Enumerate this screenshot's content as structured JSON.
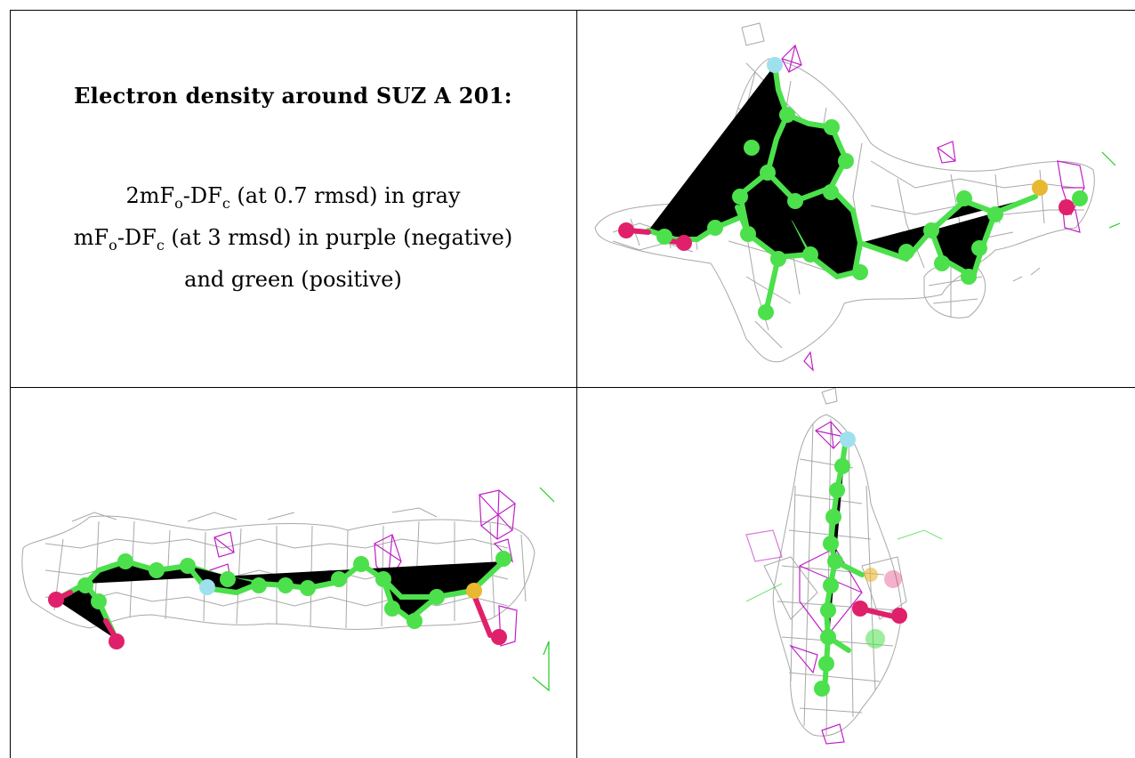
{
  "figure": {
    "title": "Electron density around SUZ A 201:",
    "legend_lines": [
      {
        "pre": "2mF",
        "sub1": "o",
        "mid": "-DF",
        "sub2": "c",
        "post": " (at 0.7 rmsd) in gray"
      },
      {
        "pre": "mF",
        "sub1": "o",
        "mid": "-DF",
        "sub2": "c",
        "post": " (at 3 rmsd) in purple (negative)"
      },
      {
        "text": "and green (positive)"
      }
    ],
    "colors": {
      "mesh_2fofc": "#a8a8a8",
      "mesh_negative": "#c020c8",
      "mesh_positive": "#22cc22",
      "carbon": "#4ce04c",
      "oxygen": "#e0206a",
      "sulfur": "#e8b830",
      "fluorine": "#9ee0ee"
    },
    "panels": [
      "view-top",
      "view-side",
      "view-end"
    ]
  }
}
